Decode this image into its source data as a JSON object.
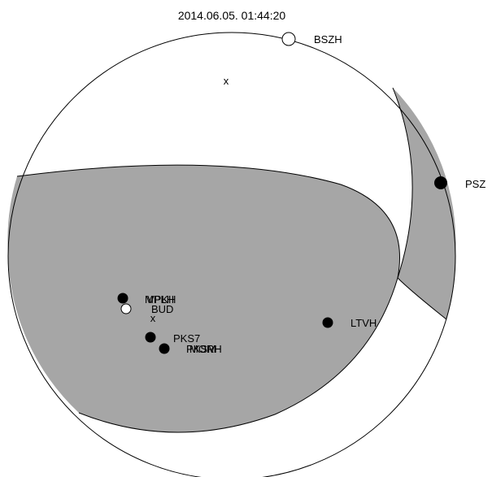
{
  "title": "2014.06.05. 01:44:20",
  "colors": {
    "background": "#ffffff",
    "compression": "#a6a6a6",
    "outline": "#000000",
    "dilatation_marker": "#ffffff",
    "compression_marker": "#000000"
  },
  "axes": {
    "p_axis": "x",
    "t_axis": "x"
  },
  "stations": [
    {
      "code": "BSZH",
      "polarity": "dilatation"
    },
    {
      "code": "PSZ",
      "polarity": "compression"
    },
    {
      "code": "LTVH",
      "polarity": "compression"
    },
    {
      "code": "MPLH",
      "polarity": "compression"
    },
    {
      "code": "VPKH",
      "polarity": "compression"
    },
    {
      "code": "BUD",
      "polarity": "dilatation"
    },
    {
      "code": "PKS7",
      "polarity": "compression"
    },
    {
      "code": "PKSM",
      "polarity": "compression"
    },
    {
      "code": "MORH",
      "polarity": "compression"
    }
  ]
}
